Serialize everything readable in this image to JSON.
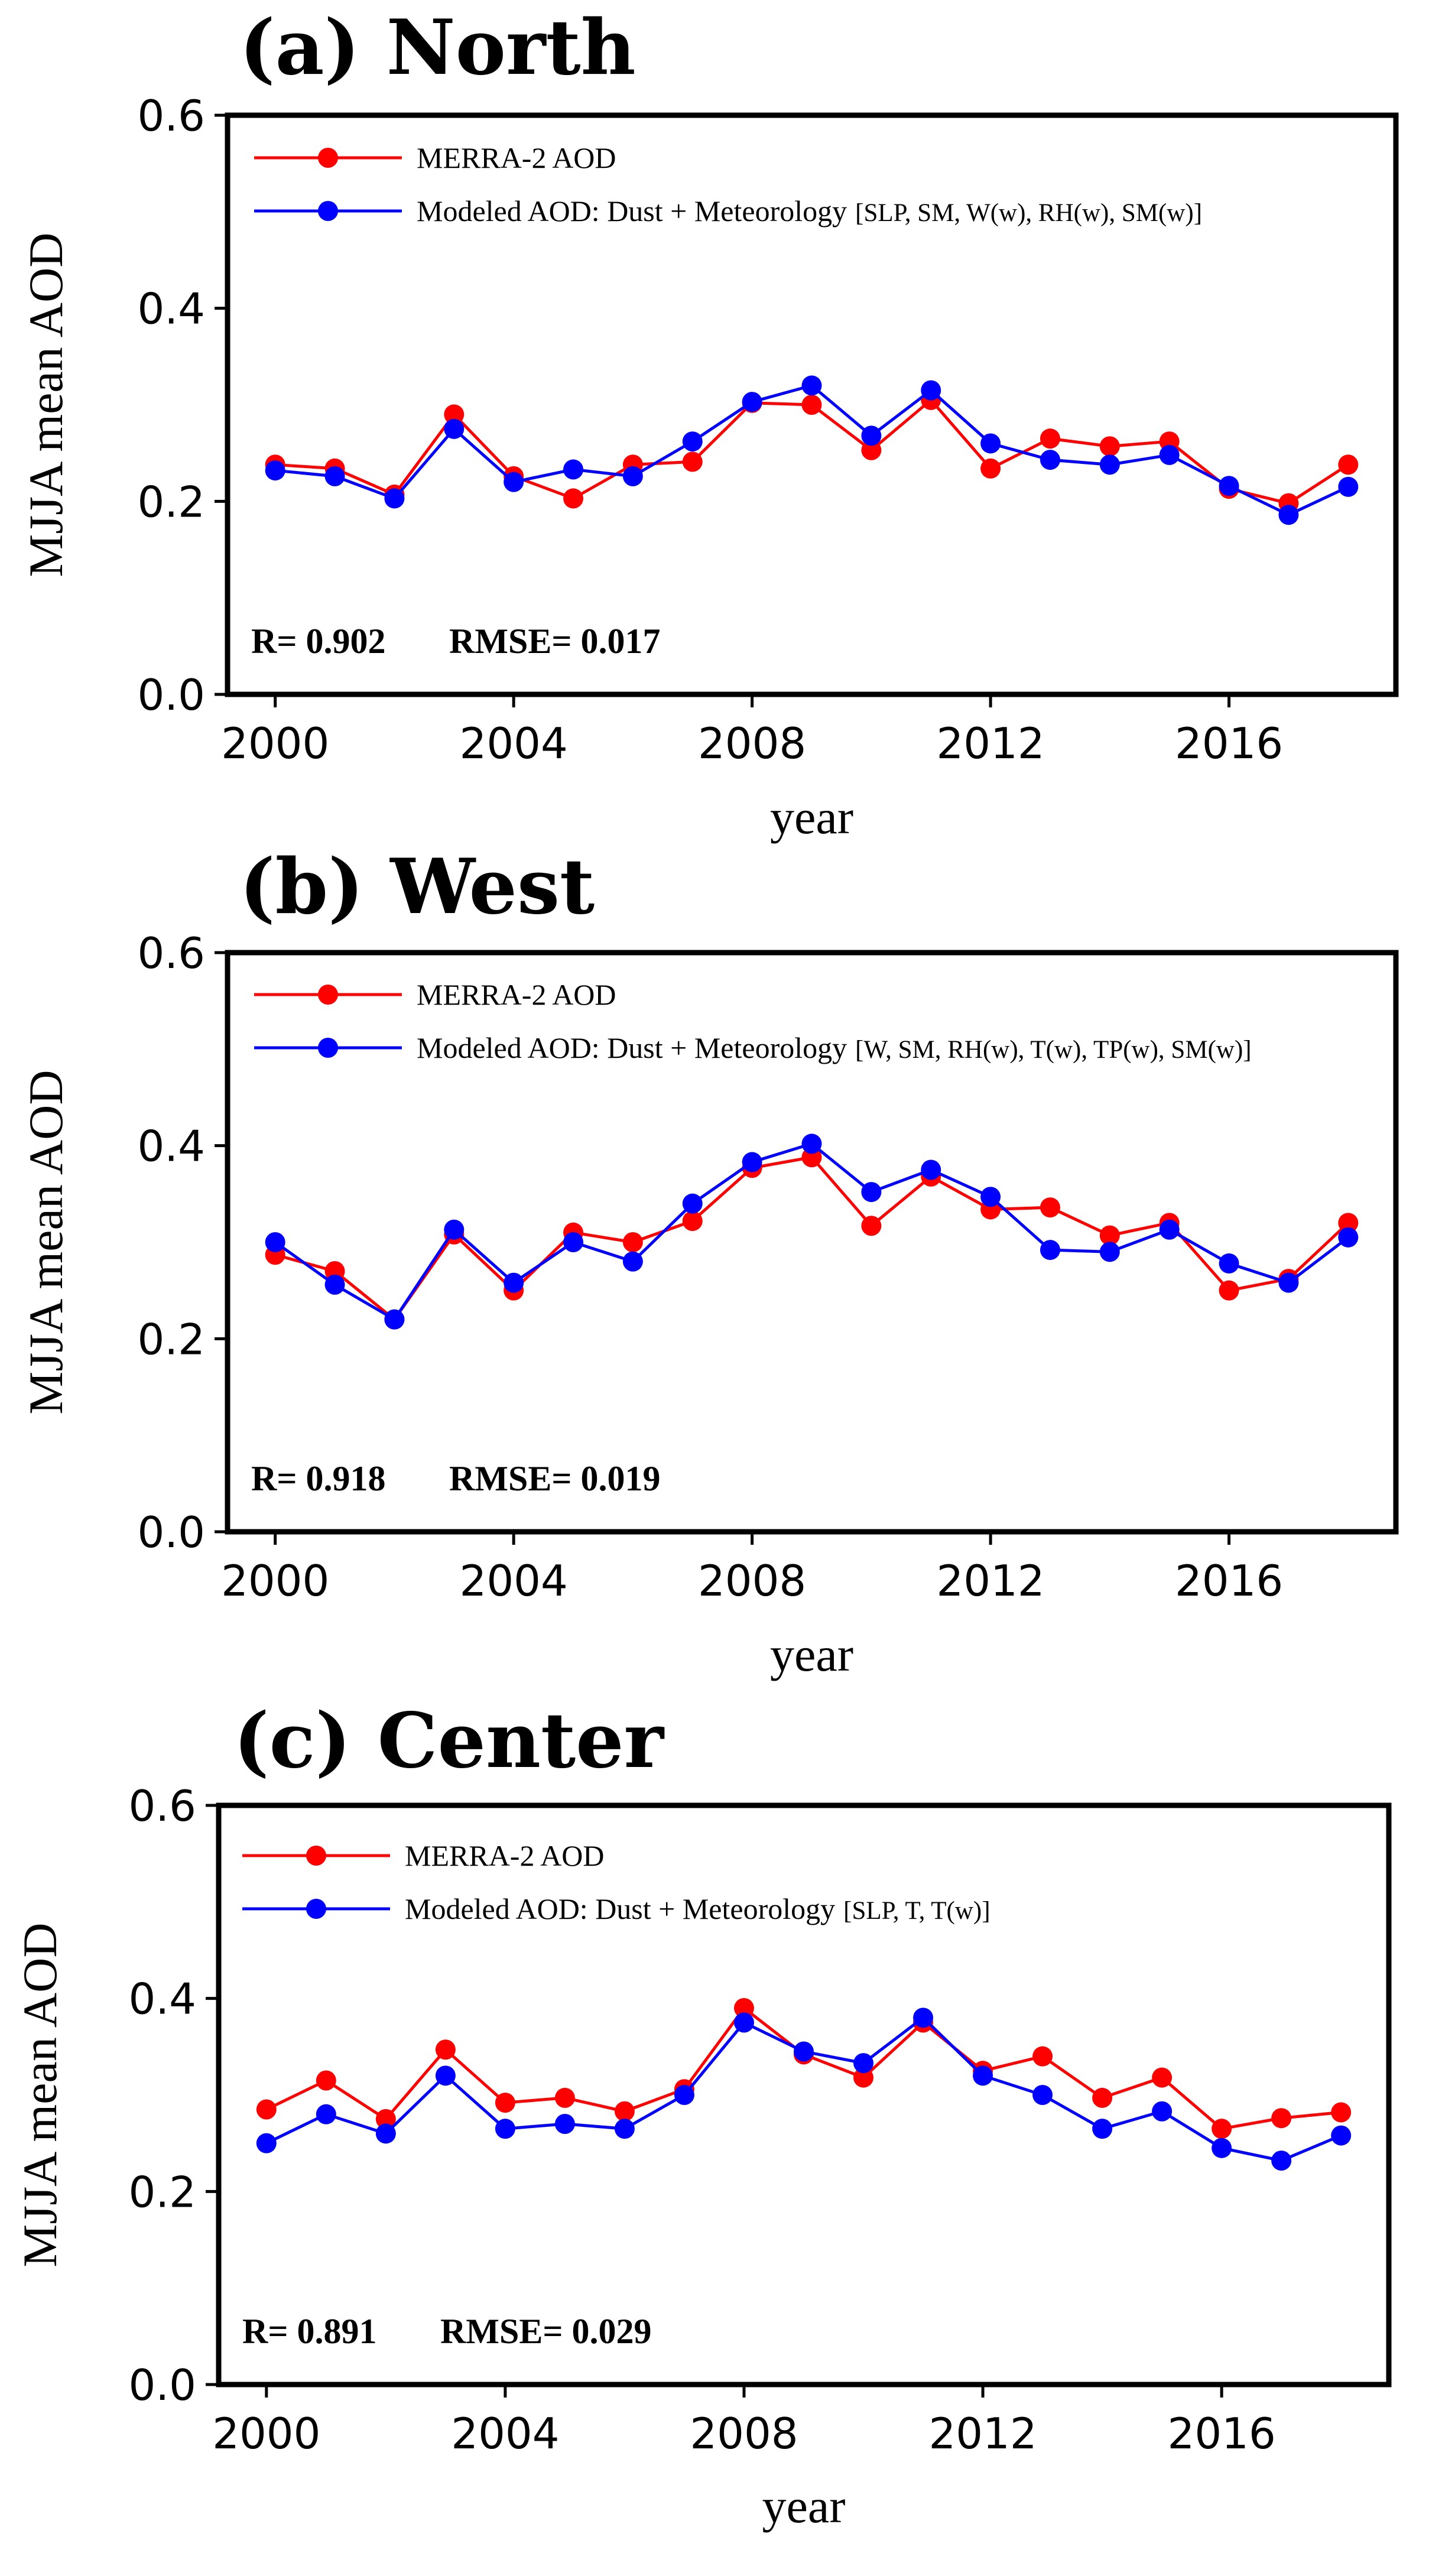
{
  "chart_data": [
    {
      "type": "line",
      "title": "(a) North",
      "xlabel": "year",
      "ylabel": "MJJA mean AOD",
      "xlim": [
        1999.2,
        2018.8
      ],
      "ylim": [
        0.0,
        0.6
      ],
      "xticks": [
        "2000",
        "2004",
        "2008",
        "2012",
        "2016"
      ],
      "yticks": [
        "0.0",
        "0.2",
        "0.4",
        "0.6"
      ],
      "x": [
        2000,
        2001,
        2002,
        2003,
        2004,
        2005,
        2006,
        2007,
        2008,
        2009,
        2010,
        2011,
        2012,
        2013,
        2014,
        2015,
        2016,
        2017,
        2018
      ],
      "series": [
        {
          "name": "MERRA-2 AOD",
          "color": "#ff0000",
          "values": [
            0.238,
            0.234,
            0.207,
            0.29,
            0.226,
            0.203,
            0.238,
            0.241,
            0.302,
            0.3,
            0.253,
            0.305,
            0.234,
            0.265,
            0.257,
            0.262,
            0.213,
            0.198,
            0.238
          ]
        },
        {
          "name": "Modeled AOD: Dust + Meteorology",
          "name_suffix": "[SLP, SM, W(w), RH(w), SM(w)]",
          "color": "#0000ff",
          "values": [
            0.232,
            0.226,
            0.203,
            0.275,
            0.22,
            0.233,
            0.226,
            0.262,
            0.303,
            0.32,
            0.268,
            0.315,
            0.26,
            0.243,
            0.238,
            0.248,
            0.216,
            0.186,
            0.215
          ]
        }
      ],
      "stats": {
        "r": "R= 0.902",
        "rmse": "RMSE= 0.017"
      }
    },
    {
      "type": "line",
      "title": "(b) West",
      "xlabel": "year",
      "ylabel": "MJJA mean AOD",
      "xlim": [
        1999.2,
        2018.8
      ],
      "ylim": [
        0.0,
        0.6
      ],
      "xticks": [
        "2000",
        "2004",
        "2008",
        "2012",
        "2016"
      ],
      "yticks": [
        "0.0",
        "0.2",
        "0.4",
        "0.6"
      ],
      "x": [
        2000,
        2001,
        2002,
        2003,
        2004,
        2005,
        2006,
        2007,
        2008,
        2009,
        2010,
        2011,
        2012,
        2013,
        2014,
        2015,
        2016,
        2017,
        2018
      ],
      "series": [
        {
          "name": "MERRA-2 AOD",
          "color": "#ff0000",
          "values": [
            0.287,
            0.27,
            0.22,
            0.308,
            0.25,
            0.31,
            0.3,
            0.322,
            0.377,
            0.388,
            0.317,
            0.368,
            0.334,
            0.336,
            0.307,
            0.32,
            0.25,
            0.262,
            0.32
          ]
        },
        {
          "name": "Modeled AOD: Dust + Meteorology",
          "name_suffix": "[W, SM, RH(w), T(w), TP(w), SM(w)]",
          "color": "#0000ff",
          "values": [
            0.3,
            0.256,
            0.22,
            0.313,
            0.258,
            0.3,
            0.28,
            0.34,
            0.383,
            0.402,
            0.352,
            0.375,
            0.347,
            0.292,
            0.29,
            0.313,
            0.278,
            0.258,
            0.305
          ]
        }
      ],
      "stats": {
        "r": "R= 0.918",
        "rmse": "RMSE= 0.019"
      }
    },
    {
      "type": "line",
      "title": "(c) Center",
      "xlabel": "year",
      "ylabel": "MJJA mean AOD",
      "xlim": [
        1999.2,
        2018.8
      ],
      "ylim": [
        0.0,
        0.6
      ],
      "xticks": [
        "2000",
        "2004",
        "2008",
        "2012",
        "2016"
      ],
      "yticks": [
        "0.0",
        "0.2",
        "0.4",
        "0.6"
      ],
      "x": [
        2000,
        2001,
        2002,
        2003,
        2004,
        2005,
        2006,
        2007,
        2008,
        2009,
        2010,
        2011,
        2012,
        2013,
        2014,
        2015,
        2016,
        2017,
        2018
      ],
      "series": [
        {
          "name": "MERRA-2 AOD",
          "color": "#ff0000",
          "values": [
            0.285,
            0.315,
            0.275,
            0.347,
            0.292,
            0.297,
            0.283,
            0.306,
            0.39,
            0.342,
            0.318,
            0.375,
            0.325,
            0.34,
            0.297,
            0.318,
            0.265,
            0.276,
            0.282
          ]
        },
        {
          "name": "Modeled AOD: Dust + Meteorology",
          "name_suffix": "[SLP, T, T(w)]",
          "color": "#0000ff",
          "values": [
            0.25,
            0.28,
            0.26,
            0.32,
            0.265,
            0.27,
            0.265,
            0.3,
            0.375,
            0.345,
            0.333,
            0.38,
            0.32,
            0.3,
            0.265,
            0.283,
            0.245,
            0.232,
            0.258
          ]
        }
      ],
      "stats": {
        "r": "R=  0.891",
        "rmse": "RMSE= 0.029"
      }
    }
  ]
}
